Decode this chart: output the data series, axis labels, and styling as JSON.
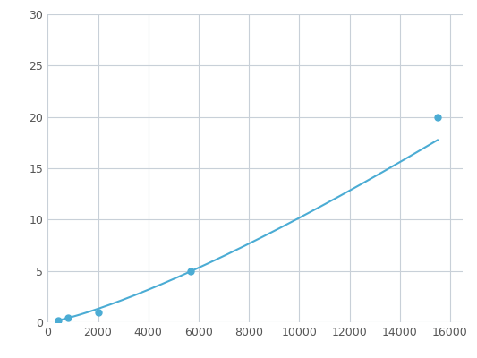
{
  "x": [
    400,
    800,
    2000,
    5700,
    15500
  ],
  "y": [
    0.2,
    0.4,
    1.0,
    5.0,
    20.0
  ],
  "line_color": "#4bacd4",
  "marker_color": "#4bacd4",
  "marker_size": 5,
  "marker_style": "o",
  "linewidth": 1.5,
  "xlim": [
    0,
    16500
  ],
  "ylim": [
    0,
    30
  ],
  "xticks": [
    0,
    2000,
    4000,
    6000,
    8000,
    10000,
    12000,
    14000,
    16000
  ],
  "yticks": [
    0,
    5,
    10,
    15,
    20,
    25,
    30
  ],
  "grid_color": "#c8d0d8",
  "grid_linewidth": 0.8,
  "background_color": "#ffffff",
  "figure_facecolor": "#ffffff"
}
